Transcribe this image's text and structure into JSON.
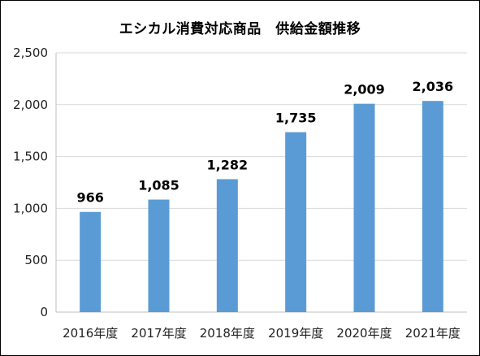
{
  "chart_data": {
    "type": "bar",
    "title": "エシカル消費対応商品　供給金額推移",
    "categories": [
      "2016年度",
      "2017年度",
      "2018年度",
      "2019年度",
      "2020年度",
      "2021年度"
    ],
    "values": [
      966,
      1085,
      1282,
      1735,
      2009,
      2036
    ],
    "data_labels": [
      "966",
      "1,085",
      "1,282",
      "1,735",
      "2,009",
      "2,036"
    ],
    "y_ticks": [
      0,
      500,
      1000,
      1500,
      2000,
      2500
    ],
    "y_tick_labels": [
      "0",
      "500",
      "1,000",
      "1,500",
      "2,000",
      "2,500"
    ],
    "ylim": [
      0,
      2500
    ],
    "xlabel": "",
    "ylabel": "",
    "grid": true,
    "legend": "none",
    "bar_color": "#5b9bd5",
    "grid_color": "#d9d9d9"
  }
}
